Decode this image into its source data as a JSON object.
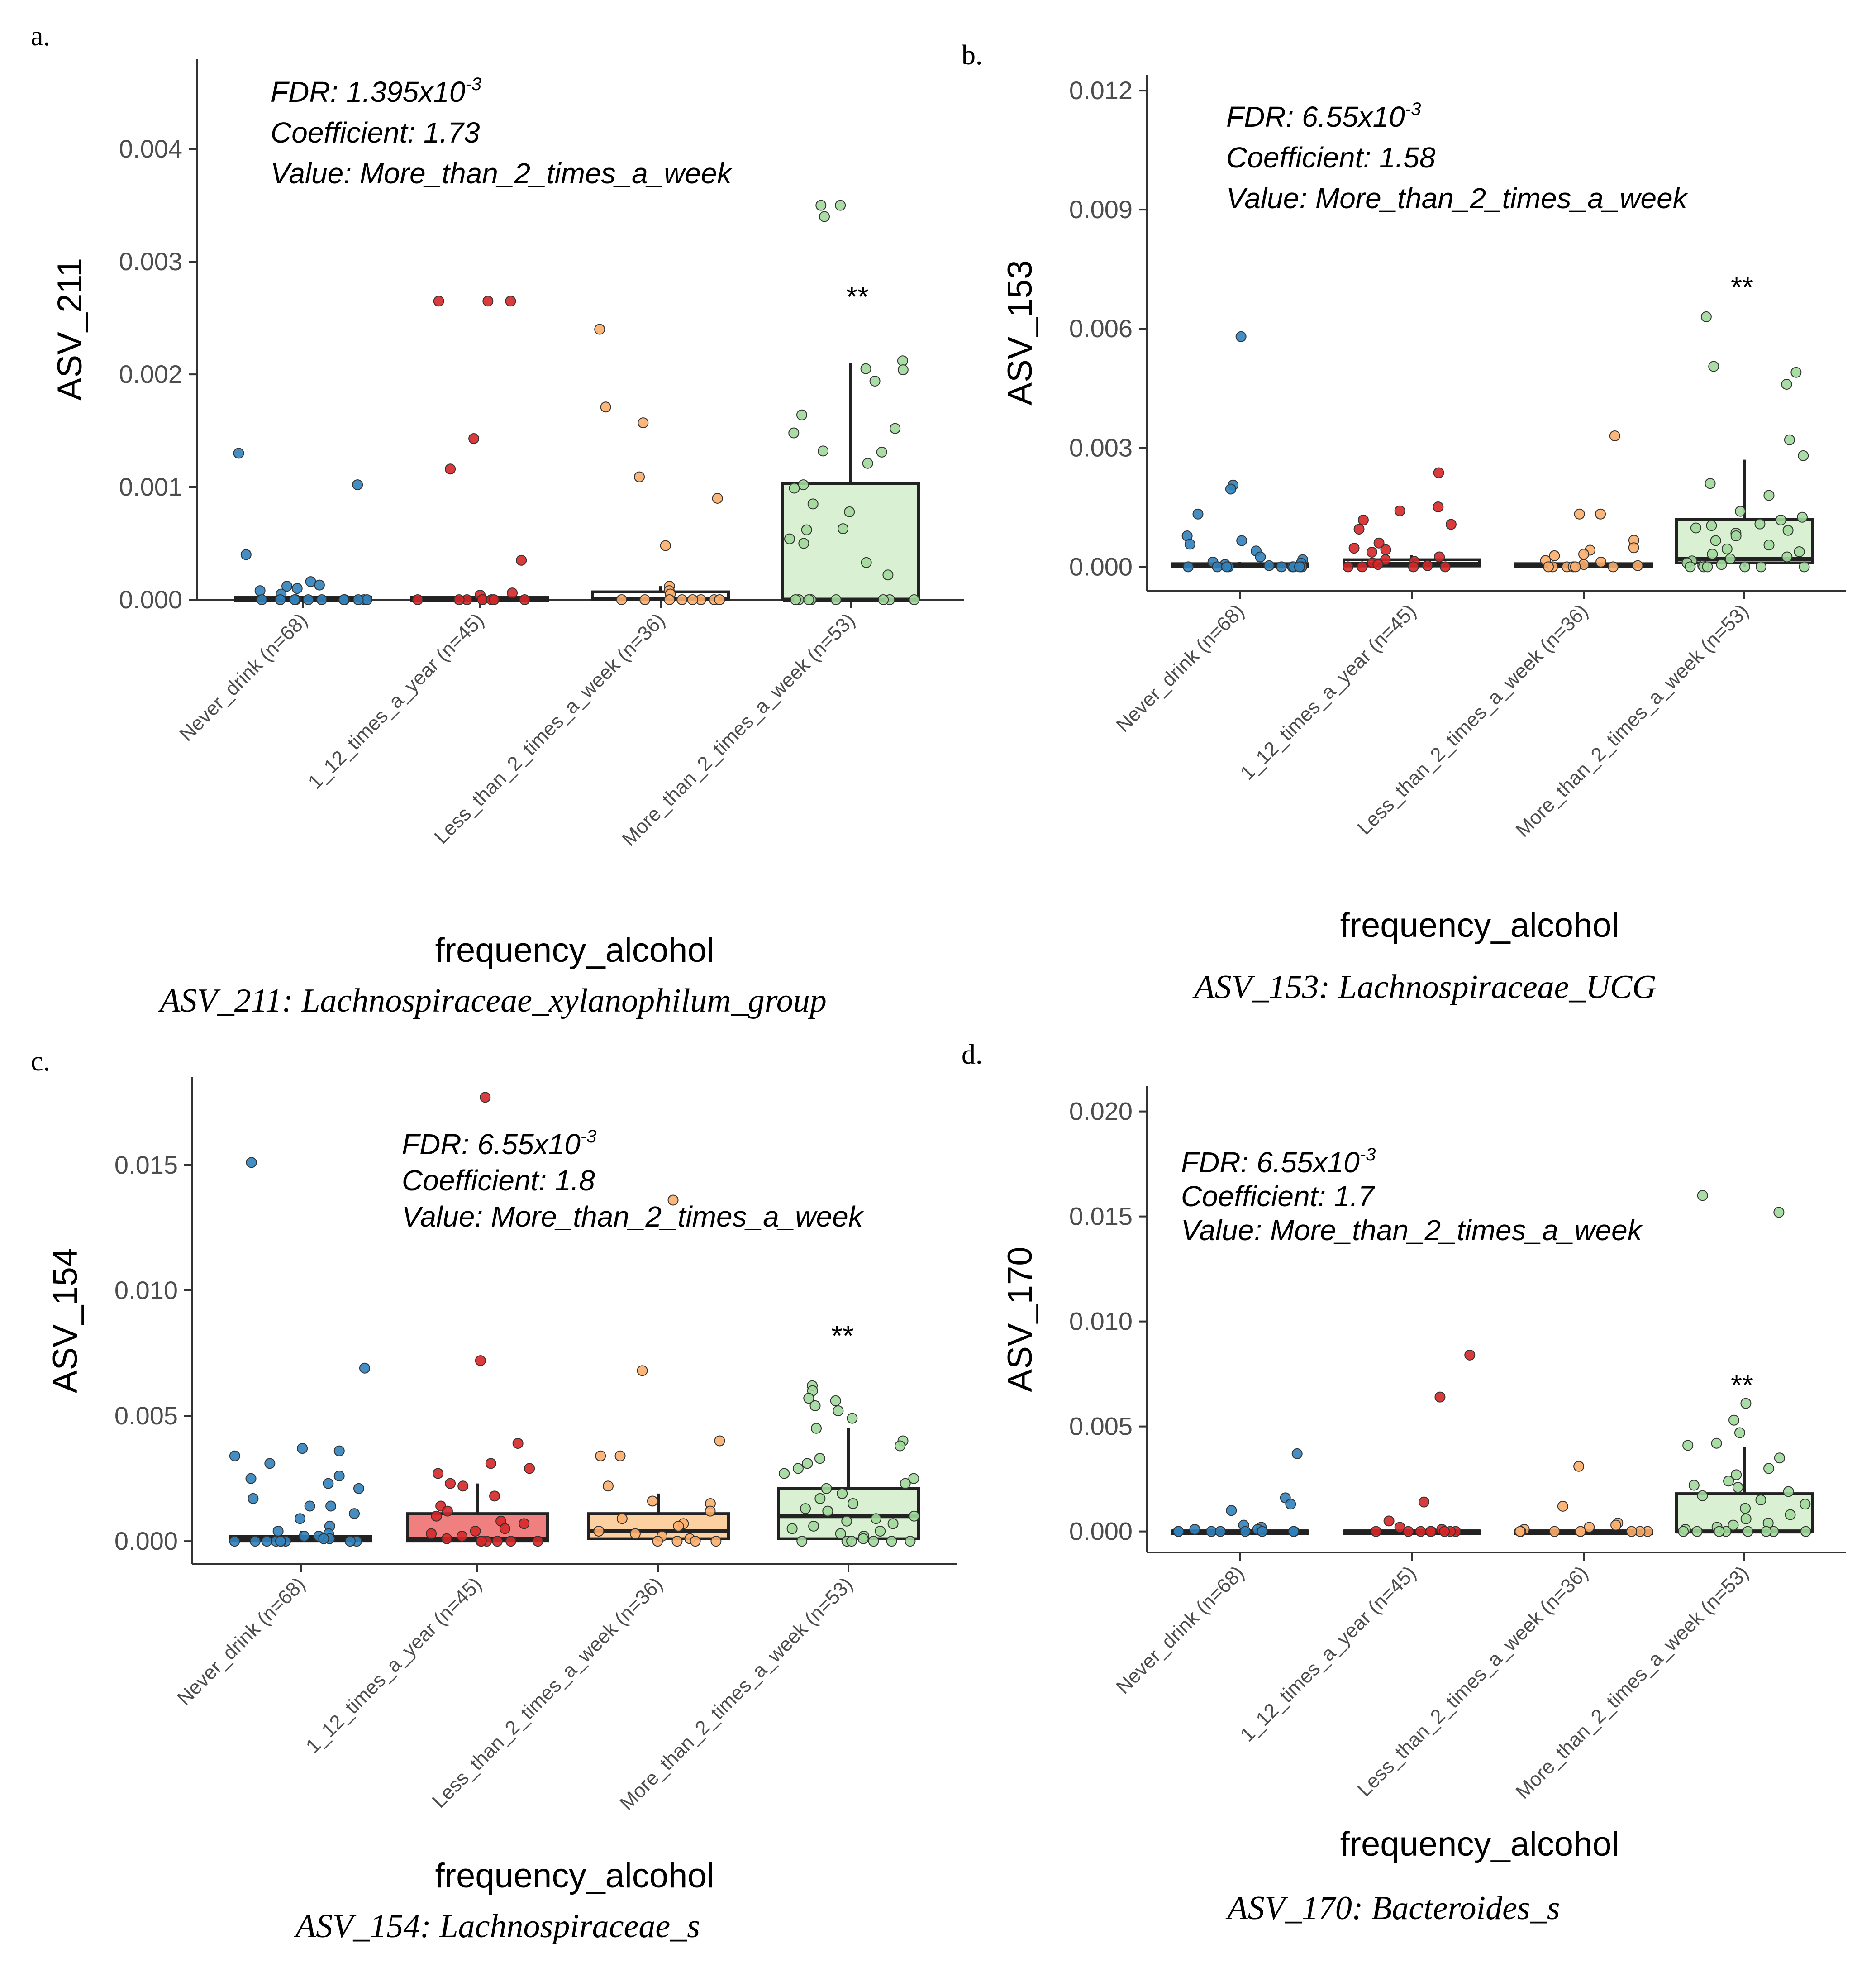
{
  "colors": {
    "Never_drink": "#3182bd",
    "1_12_times_a_year": "#d62728",
    "Less_than_2_times_a_week": "#fdae6b",
    "More_than_2_times_a_week": "#a1d99b",
    "axis": "#333333"
  },
  "chart_data": [
    {
      "panel": "a.",
      "type": "box",
      "ylabel": "ASV_211",
      "xlabel": "frequency_alcohol",
      "caption": "ASV_211: Lachnospiraceae_xylanophilum_group",
      "ylim": [
        0,
        0.0048
      ],
      "yticks": [
        "0.000",
        "0.001",
        "0.002",
        "0.003",
        "0.004"
      ],
      "categories": [
        "Never_drink (n=68)",
        "1_12_times_a_year (n=45)",
        "Less_than_2_times_a_week (n=36)",
        "More_than_2_times_a_week (n=53)"
      ],
      "annotation": {
        "fdr_prefix": "FDR: 1.395x10",
        "fdr_exp": "-3",
        "coefficient": "Coefficient:  1.73",
        "value": "Value: More_than_2_times_a_week"
      },
      "significance": {
        "group": 3,
        "label": "**",
        "y": 0.0026
      },
      "boxes": [
        {
          "q1": 0,
          "median": 0,
          "q3": 2e-05,
          "lo": 0,
          "hi": 2e-05,
          "fill": "#ffffff"
        },
        {
          "q1": 0,
          "median": 0,
          "q3": 2e-05,
          "lo": 0,
          "hi": 2e-05,
          "fill": "#ffffff"
        },
        {
          "q1": 0,
          "median": 1e-05,
          "q3": 7e-05,
          "lo": 0,
          "hi": 0.00012,
          "fill": "#ffffff"
        },
        {
          "q1": 0,
          "median": 0,
          "q3": 0.00103,
          "lo": 0,
          "hi": 0.0021,
          "fill": "#d9f0d3"
        }
      ],
      "points": [
        [
          0.0013,
          0.00102,
          0.0004,
          0.00016,
          0.00012,
          0.0001,
          0.00013,
          8e-05,
          5e-05,
          0,
          0,
          0,
          0,
          0,
          0,
          0,
          0,
          0,
          0,
          0
        ],
        [
          0.00265,
          0.00265,
          0.00265,
          0.00143,
          0.00116,
          0.00035,
          6e-05,
          4e-05,
          0,
          0,
          0,
          0,
          0,
          0,
          0,
          0
        ],
        [
          0.0024,
          0.00171,
          0.00157,
          0.00109,
          0.0009,
          0.00048,
          0.00012,
          8e-05,
          5e-05,
          0,
          0,
          0,
          0,
          0,
          0,
          0,
          0
        ],
        [
          0.0035,
          0.0035,
          0.0034,
          0.00212,
          0.00205,
          0.00204,
          0.00194,
          0.00164,
          0.00152,
          0.00148,
          0.00132,
          0.00131,
          0.00121,
          0.00102,
          0.00099,
          0.00085,
          0.00078,
          0.00063,
          0.00062,
          0.00054,
          0.0005,
          0.00033,
          0.00022,
          0,
          0,
          0,
          0,
          0,
          0,
          0,
          0
        ]
      ]
    },
    {
      "panel": "b.",
      "type": "box",
      "ylabel": "ASV_153",
      "xlabel": "frequency_alcohol",
      "caption": "ASV_153: Lachnospiraceae_UCG",
      "ylim": [
        -0.0006,
        0.0124
      ],
      "yticks": [
        "0.000",
        "0.003",
        "0.006",
        "0.009",
        "0.012"
      ],
      "categories": [
        "Never_drink (n=68)",
        "1_12_times_a_year (n=45)",
        "Less_than_2_times_a_week (n=36)",
        "More_than_2_times_a_week (n=53)"
      ],
      "annotation": {
        "fdr_prefix": "FDR: 6.55x10",
        "fdr_exp": "-3",
        "coefficient": "Coefficient:  1.58",
        "value": "Value: More_than_2_times_a_week"
      },
      "significance": {
        "group": 3,
        "label": "**",
        "y": 0.0068
      },
      "boxes": [
        {
          "q1": 0,
          "median": 3e-05,
          "q3": 8e-05,
          "lo": 0,
          "hi": 0.00012,
          "fill": "#ffffff"
        },
        {
          "q1": 2e-05,
          "median": 7e-05,
          "q3": 0.00018,
          "lo": 0,
          "hi": 0.0003,
          "fill": "#ffffff"
        },
        {
          "q1": 0,
          "median": 3e-05,
          "q3": 8e-05,
          "lo": 0,
          "hi": 0.00015,
          "fill": "#ffffff"
        },
        {
          "q1": 0.0001,
          "median": 0.0002,
          "q3": 0.0012,
          "lo": 0,
          "hi": 0.0027,
          "fill": "#d9f0d3"
        }
      ],
      "points": [
        [
          0.0058,
          0.00206,
          0.00196,
          0.00133,
          0.00078,
          0.00066,
          0.00057,
          0.0004,
          0.00025,
          0.00018,
          0.00012,
          9e-05,
          6e-05,
          3e-05,
          0,
          0,
          0,
          0,
          0,
          0,
          0,
          0,
          0,
          0
        ],
        [
          0.00237,
          0.00151,
          0.00141,
          0.00118,
          0.00107,
          0.00095,
          0.0006,
          0.00047,
          0.00043,
          0.00037,
          0.00025,
          0.00018,
          0.00014,
          0.0001,
          6e-05,
          3e-05,
          0,
          0,
          0,
          0
        ],
        [
          0.0033,
          0.00133,
          0.00133,
          0.00067,
          0.00048,
          0.00042,
          0.00032,
          0.00028,
          0.00016,
          0.00012,
          6e-05,
          3e-05,
          0,
          0,
          0,
          0,
          0,
          0
        ],
        [
          0.0063,
          0.00505,
          0.0049,
          0.0046,
          0.0032,
          0.0028,
          0.0021,
          0.0018,
          0.0014,
          0.00125,
          0.00118,
          0.00108,
          0.00104,
          0.00098,
          0.00092,
          0.00085,
          0.00078,
          0.00066,
          0.00055,
          0.00045,
          0.00038,
          0.00032,
          0.00025,
          0.0002,
          0.00015,
          0.0001,
          6e-05,
          3e-05,
          0,
          0,
          0,
          0,
          0,
          0
        ]
      ]
    },
    {
      "panel": "c.",
      "type": "box",
      "ylabel": "ASV_154",
      "xlabel": "frequency_alcohol",
      "caption": "ASV_154: Lachnospiraceae_s",
      "ylim": [
        -0.0009,
        0.0185
      ],
      "yticks": [
        "0.000",
        "0.005",
        "0.010",
        "0.015"
      ],
      "categories": [
        "Never_drink (n=68)",
        "1_12_times_a_year (n=45)",
        "Less_than_2_times_a_week (n=36)",
        "More_than_2_times_a_week (n=53)"
      ],
      "annotation": {
        "fdr_prefix": "FDR: 6.55x10",
        "fdr_exp": "-3",
        "coefficient": "Coefficient:  1.8",
        "value": "Value: More_than_2_times_a_week"
      },
      "significance": {
        "group": 3,
        "label": "**",
        "y": 0.0078
      },
      "boxes": [
        {
          "q1": 0,
          "median": 0.0001,
          "q3": 0.0002,
          "lo": 0,
          "hi": 0.0004,
          "fill": "#ffffff"
        },
        {
          "q1": 0,
          "median": 0.0001,
          "q3": 0.0011,
          "lo": 0,
          "hi": 0.0023,
          "fill": "#f08080"
        },
        {
          "q1": 0.0001,
          "median": 0.0004,
          "q3": 0.0011,
          "lo": 0,
          "hi": 0.0019,
          "fill": "#fdd0a2"
        },
        {
          "q1": 0.0001,
          "median": 0.001,
          "q3": 0.0021,
          "lo": 0,
          "hi": 0.0045,
          "fill": "#d9f0d3"
        }
      ],
      "points": [
        [
          0.0151,
          0.0069,
          0.0037,
          0.0036,
          0.0034,
          0.0031,
          0.0026,
          0.0025,
          0.0023,
          0.0021,
          0.0017,
          0.0014,
          0.0014,
          0.0011,
          0.0009,
          0.0006,
          0.0004,
          0.0003,
          0.0002,
          0.0002,
          0.0001,
          0.0001,
          0,
          0,
          0,
          0,
          0,
          0,
          0,
          0,
          0
        ],
        [
          0.0177,
          0.0072,
          0.0039,
          0.0031,
          0.0029,
          0.0027,
          0.0023,
          0.0022,
          0.0018,
          0.0014,
          0.0012,
          0.001,
          0.0008,
          0.0007,
          0.0005,
          0.0004,
          0.0003,
          0.0002,
          0.0001,
          0,
          0,
          0,
          0,
          0,
          0
        ],
        [
          0.0136,
          0.0068,
          0.004,
          0.0034,
          0.0034,
          0.0022,
          0.0016,
          0.0015,
          0.0012,
          0.0009,
          0.0007,
          0.0006,
          0.0004,
          0.0003,
          0.0002,
          0.0001,
          0,
          0,
          0,
          0
        ],
        [
          0.0062,
          0.006,
          0.0057,
          0.0056,
          0.0054,
          0.0052,
          0.0049,
          0.0045,
          0.004,
          0.0038,
          0.0033,
          0.0031,
          0.0029,
          0.0027,
          0.0025,
          0.0023,
          0.0021,
          0.0019,
          0.0017,
          0.0015,
          0.0013,
          0.0012,
          0.001,
          0.0009,
          0.0008,
          0.0007,
          0.0006,
          0.0005,
          0.0004,
          0.0003,
          0.0002,
          0.0001,
          0,
          0,
          0,
          0,
          0,
          0
        ]
      ]
    },
    {
      "panel": "d.",
      "type": "box",
      "ylabel": "ASV_170",
      "xlabel": "frequency_alcohol",
      "caption": "ASV_170: Bacteroides_s",
      "ylim": [
        -0.001,
        0.0212
      ],
      "yticks": [
        "0.000",
        "0.005",
        "0.010",
        "0.015",
        "0.020"
      ],
      "categories": [
        "Never_drink (n=68)",
        "1_12_times_a_year (n=45)",
        "Less_than_2_times_a_week (n=36)",
        "More_than_2_times_a_week (n=53)"
      ],
      "annotation": {
        "fdr_prefix": "FDR: 6.55x10",
        "fdr_exp": "-3",
        "coefficient": "Coefficient:  1.7",
        "value": "Value: More_than_2_times_a_week"
      },
      "significance": {
        "group": 3,
        "label": "**",
        "y": 0.0065
      },
      "boxes": [
        {
          "q1": 0,
          "median": 0,
          "q3": 3e-05,
          "lo": 0,
          "hi": 6e-05,
          "fill": "#ffffff"
        },
        {
          "q1": 0,
          "median": 0,
          "q3": 3e-05,
          "lo": 0,
          "hi": 6e-05,
          "fill": "#ffffff"
        },
        {
          "q1": 0,
          "median": 0,
          "q3": 3e-05,
          "lo": 0,
          "hi": 6e-05,
          "fill": "#ffffff"
        },
        {
          "q1": 0,
          "median": 0,
          "q3": 0.0018,
          "lo": 0,
          "hi": 0.004,
          "fill": "#d9f0d3"
        }
      ],
      "points": [
        [
          0.0037,
          0.0016,
          0.0013,
          0.001,
          0.0003,
          0.0002,
          0.0001,
          0.0001,
          0,
          0,
          0,
          0,
          0,
          0,
          0,
          0
        ],
        [
          0.0084,
          0.0064,
          0.0014,
          0.0005,
          0.0002,
          0.0001,
          0,
          0,
          0,
          0,
          0,
          0,
          0,
          0
        ],
        [
          0.0031,
          0.0012,
          0.0004,
          0.0003,
          0.0002,
          0.0001,
          0,
          0,
          0,
          0,
          0,
          0,
          0,
          0
        ],
        [
          0.016,
          0.0152,
          0.0061,
          0.0053,
          0.0047,
          0.0042,
          0.0041,
          0.0035,
          0.003,
          0.0027,
          0.0024,
          0.0022,
          0.0021,
          0.0019,
          0.0017,
          0.0015,
          0.0013,
          0.0011,
          0.0008,
          0.0006,
          0.0004,
          0.0003,
          0.0002,
          0.0001,
          0,
          0,
          0,
          0,
          0,
          0,
          0,
          0
        ]
      ]
    }
  ]
}
